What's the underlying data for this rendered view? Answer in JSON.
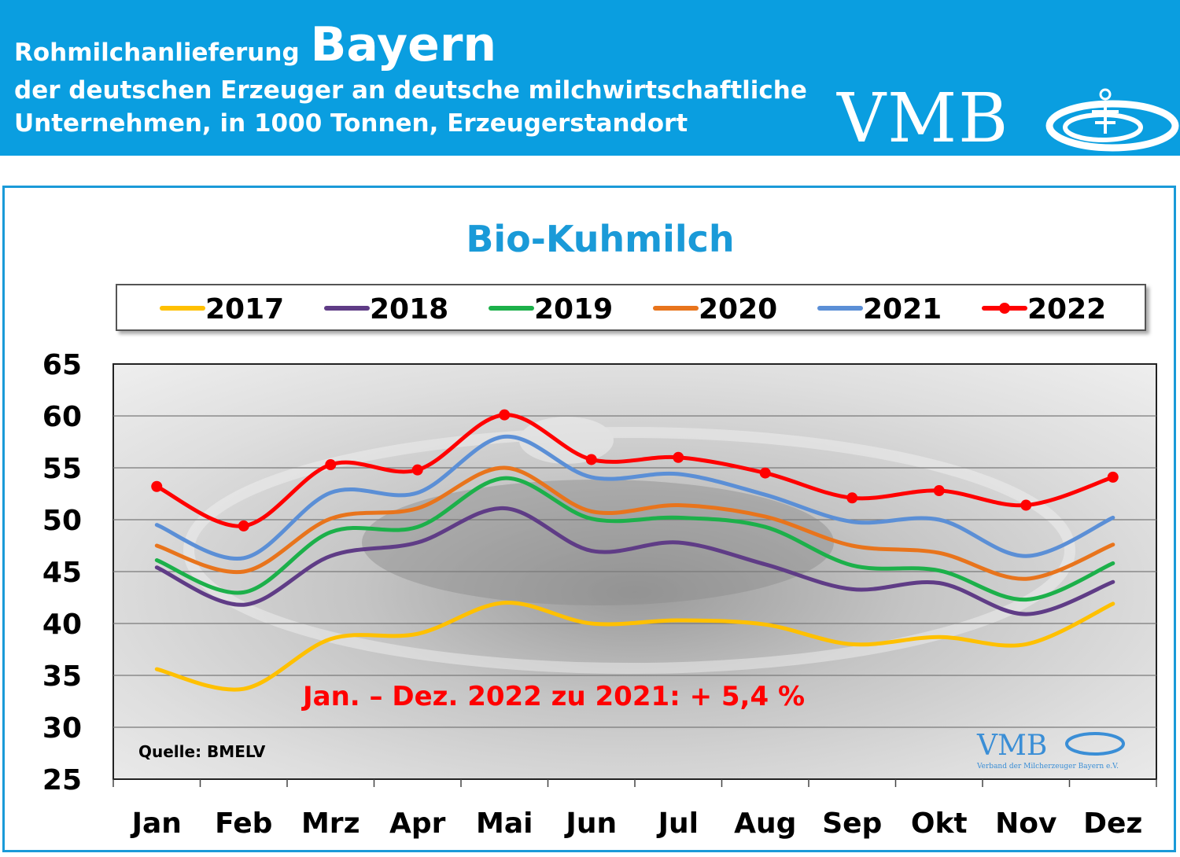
{
  "header": {
    "title_prefix": "Rohmilchanlieferung",
    "title_region": "Bayern",
    "subtitle_line1": "der deutschen Erzeuger an deutsche milchwirtschaftliche",
    "subtitle_line2": "Unternehmen, in 1000 Tonnen, Erzeugerstandort",
    "logo_text": "VMB"
  },
  "colors": {
    "header_bg": "#0a9ee0",
    "title": "#1a9ad8",
    "annotation": "#ff0000"
  },
  "chart_data": {
    "type": "line",
    "title": "Bio-Kuhmilch",
    "categories": [
      "Jan",
      "Feb",
      "Mrz",
      "Apr",
      "Mai",
      "Jun",
      "Jul",
      "Aug",
      "Sep",
      "Okt",
      "Nov",
      "Dez"
    ],
    "ylim": [
      25,
      65
    ],
    "yticks": [
      65,
      60,
      55,
      50,
      45,
      40,
      35,
      30,
      25
    ],
    "legend_position": "top",
    "grid": true,
    "series": [
      {
        "name": "2017",
        "color": "#ffc000",
        "markers": false,
        "values": [
          35.6,
          33.7,
          38.5,
          39.0,
          42.0,
          40.0,
          40.3,
          39.9,
          38.0,
          38.7,
          38.0,
          41.9
        ]
      },
      {
        "name": "2018",
        "color": "#5f3c86",
        "markers": false,
        "values": [
          45.4,
          41.8,
          46.5,
          47.8,
          51.1,
          47.0,
          47.8,
          45.7,
          43.3,
          43.9,
          40.9,
          44.0
        ]
      },
      {
        "name": "2019",
        "color": "#1cb04a",
        "markers": false,
        "values": [
          46.1,
          43.0,
          48.8,
          49.3,
          54.0,
          50.1,
          50.2,
          49.3,
          45.6,
          45.1,
          42.3,
          45.8
        ]
      },
      {
        "name": "2020",
        "color": "#e8741c",
        "markers": false,
        "values": [
          47.5,
          45.0,
          50.1,
          51.1,
          55.0,
          50.8,
          51.4,
          50.3,
          47.5,
          46.8,
          44.3,
          47.6
        ]
      },
      {
        "name": "2021",
        "color": "#5b8fd6",
        "markers": false,
        "values": [
          49.5,
          46.3,
          52.6,
          52.6,
          58.0,
          54.1,
          54.4,
          52.4,
          49.8,
          50.0,
          46.5,
          50.2
        ]
      },
      {
        "name": "2022",
        "color": "#ff0000",
        "markers": true,
        "values": [
          53.2,
          49.4,
          55.3,
          54.8,
          60.1,
          55.8,
          56.0,
          54.5,
          52.1,
          52.8,
          51.4,
          54.1
        ]
      }
    ],
    "annotation": "Jan. – Dez. 2022 zu 2021: + 5,4 %",
    "source": "Quelle: BMELV"
  },
  "watermark": {
    "logo_text": "VMB",
    "caption": "Verband der Milcherzeuger Bayern e.V."
  }
}
